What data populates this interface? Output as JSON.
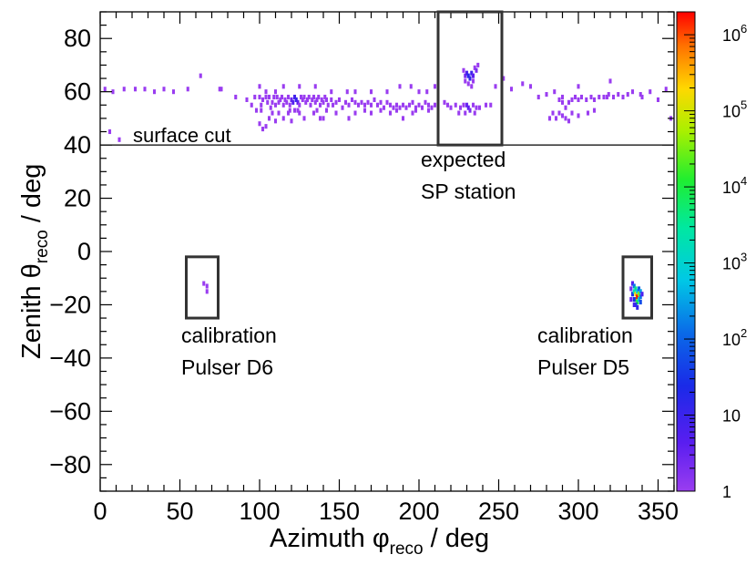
{
  "chart_data": {
    "type": "heatmap",
    "xlabel_main": "Azimuth φ",
    "xlabel_sub": "reco",
    "xlabel_tail": " / deg",
    "ylabel_main": "Zenith θ",
    "ylabel_sub": "reco",
    "ylabel_tail": " / deg",
    "xlim": [
      0,
      360
    ],
    "ylim": [
      -90,
      90
    ],
    "x_ticks": [
      "0",
      "50",
      "100",
      "150",
      "200",
      "250",
      "300",
      "350"
    ],
    "x_tick_values": [
      0,
      50,
      100,
      150,
      200,
      250,
      300,
      350
    ],
    "y_ticks": [
      "−80",
      "−60",
      "−40",
      "−20",
      "0",
      "20",
      "40",
      "60",
      "80"
    ],
    "y_tick_values": [
      -80,
      -60,
      -40,
      -20,
      0,
      20,
      40,
      60,
      80
    ],
    "colorbar": {
      "scale": "log",
      "range": [
        1,
        2000000
      ],
      "tick_labels": [
        {
          "base": "1",
          "exp": "",
          "value": 1
        },
        {
          "base": "10",
          "exp": "",
          "value": 10
        },
        {
          "base": "10",
          "exp": "2",
          "value": 100
        },
        {
          "base": "10",
          "exp": "3",
          "value": 1000
        },
        {
          "base": "10",
          "exp": "4",
          "value": 10000
        },
        {
          "base": "10",
          "exp": "5",
          "value": 100000
        },
        {
          "base": "10",
          "exp": "6",
          "value": 1000000
        }
      ]
    },
    "surface_cut": {
      "value": 40,
      "label": "surface cut"
    },
    "boxes": [
      {
        "name": "sp-station",
        "x0": 212,
        "x1": 252,
        "y0": 40,
        "y1": 90,
        "label_lines": [
          "expected",
          "SP station"
        ]
      },
      {
        "name": "pulser-d6",
        "x0": 54,
        "x1": 74,
        "y0": -25,
        "y1": -2,
        "label_lines": [
          "calibration",
          "Pulser D6"
        ]
      },
      {
        "name": "pulser-d5",
        "x0": 328,
        "x1": 346,
        "y0": -25,
        "y1": -2,
        "label_lines": [
          "calibration",
          "Pulser D5"
        ]
      }
    ],
    "cells": [
      [
        3,
        61,
        1
      ],
      [
        6,
        45,
        1
      ],
      [
        8,
        60,
        1
      ],
      [
        12,
        42,
        1
      ],
      [
        15,
        61,
        1
      ],
      [
        22,
        61,
        1
      ],
      [
        28,
        61,
        1
      ],
      [
        34,
        60,
        1
      ],
      [
        40,
        61,
        1
      ],
      [
        46,
        60,
        1
      ],
      [
        55,
        61,
        1
      ],
      [
        63,
        66,
        1
      ],
      [
        75,
        61,
        1
      ],
      [
        76,
        61,
        1
      ],
      [
        85,
        58,
        1
      ],
      [
        92,
        57,
        1
      ],
      [
        97,
        58,
        1
      ],
      [
        100,
        58,
        1
      ],
      [
        101,
        55,
        1
      ],
      [
        102,
        57,
        1
      ],
      [
        104,
        58,
        1
      ],
      [
        105,
        56,
        1
      ],
      [
        106,
        58,
        1
      ],
      [
        107,
        54,
        1
      ],
      [
        108,
        56,
        1
      ],
      [
        109,
        58,
        1
      ],
      [
        110,
        55,
        1
      ],
      [
        111,
        58,
        1
      ],
      [
        112,
        56,
        1
      ],
      [
        113,
        57,
        1
      ],
      [
        114,
        58,
        1
      ],
      [
        115,
        55,
        1
      ],
      [
        116,
        57,
        1
      ],
      [
        117,
        56,
        1
      ],
      [
        118,
        58,
        1
      ],
      [
        119,
        55,
        1
      ],
      [
        120,
        57,
        3
      ],
      [
        121,
        56,
        5
      ],
      [
        122,
        58,
        8
      ],
      [
        123,
        57,
        12
      ],
      [
        124,
        56,
        4
      ],
      [
        125,
        55,
        1
      ],
      [
        126,
        58,
        1
      ],
      [
        127,
        57,
        1
      ],
      [
        128,
        58,
        1
      ],
      [
        129,
        56,
        1
      ],
      [
        130,
        57,
        1
      ],
      [
        131,
        58,
        1
      ],
      [
        132,
        55,
        1
      ],
      [
        133,
        57,
        1
      ],
      [
        134,
        58,
        1
      ],
      [
        135,
        56,
        1
      ],
      [
        136,
        57,
        1
      ],
      [
        137,
        58,
        1
      ],
      [
        138,
        55,
        1
      ],
      [
        139,
        57,
        1
      ],
      [
        140,
        56,
        1
      ],
      [
        141,
        58,
        1
      ],
      [
        142,
        57,
        1
      ],
      [
        143,
        55,
        1
      ],
      [
        145,
        57,
        1
      ],
      [
        146,
        55,
        1
      ],
      [
        148,
        56,
        1
      ],
      [
        150,
        57,
        1
      ],
      [
        152,
        54,
        1
      ],
      [
        154,
        56,
        1
      ],
      [
        156,
        55,
        1
      ],
      [
        158,
        57,
        1
      ],
      [
        160,
        56,
        1
      ],
      [
        162,
        55,
        1
      ],
      [
        164,
        56,
        1
      ],
      [
        166,
        55,
        1
      ],
      [
        168,
        56,
        1
      ],
      [
        170,
        55,
        1
      ],
      [
        172,
        57,
        1
      ],
      [
        174,
        55,
        1
      ],
      [
        176,
        56,
        1
      ],
      [
        178,
        54,
        1
      ],
      [
        180,
        56,
        1
      ],
      [
        182,
        55,
        1
      ],
      [
        184,
        54,
        1
      ],
      [
        186,
        55,
        1
      ],
      [
        188,
        54,
        1
      ],
      [
        190,
        55,
        1
      ],
      [
        192,
        54,
        1
      ],
      [
        194,
        55,
        1
      ],
      [
        196,
        56,
        1
      ],
      [
        198,
        54,
        1
      ],
      [
        200,
        55,
        1
      ],
      [
        202,
        54,
        1
      ],
      [
        204,
        56,
        1
      ],
      [
        206,
        55,
        1
      ],
      [
        208,
        54,
        1
      ],
      [
        210,
        55,
        1
      ],
      [
        100,
        48,
        1
      ],
      [
        102,
        46,
        1
      ],
      [
        104,
        47,
        1
      ],
      [
        106,
        50,
        1
      ],
      [
        108,
        52,
        1
      ],
      [
        110,
        49,
        1
      ],
      [
        112,
        52,
        1
      ],
      [
        115,
        50,
        1
      ],
      [
        118,
        52,
        1
      ],
      [
        120,
        49,
        1
      ],
      [
        125,
        52,
        1
      ],
      [
        128,
        50,
        1
      ],
      [
        134,
        52,
        1
      ],
      [
        138,
        50,
        1
      ],
      [
        140,
        50,
        1
      ],
      [
        148,
        52,
        1
      ],
      [
        156,
        50,
        1
      ],
      [
        160,
        52,
        1
      ],
      [
        170,
        52,
        1
      ],
      [
        182,
        52,
        1
      ],
      [
        190,
        50,
        1
      ],
      [
        196,
        52,
        1
      ],
      [
        100,
        62,
        1
      ],
      [
        104,
        60,
        1
      ],
      [
        110,
        60,
        1
      ],
      [
        115,
        62,
        1
      ],
      [
        125,
        62,
        1
      ],
      [
        135,
        62,
        1
      ],
      [
        145,
        60,
        1
      ],
      [
        155,
        60,
        1
      ],
      [
        160,
        60,
        1
      ],
      [
        170,
        60,
        1
      ],
      [
        180,
        60,
        1
      ],
      [
        188,
        62,
        1
      ],
      [
        195,
        62,
        1
      ],
      [
        200,
        60,
        1
      ],
      [
        205,
        60,
        1
      ],
      [
        210,
        62,
        1
      ],
      [
        95,
        55,
        1
      ],
      [
        98,
        53,
        1
      ],
      [
        101,
        53,
        1
      ],
      [
        119,
        53,
        1
      ],
      [
        122,
        53,
        1
      ],
      [
        124,
        53,
        1
      ],
      [
        136,
        53,
        1
      ],
      [
        142,
        53,
        1
      ],
      [
        166,
        53,
        1
      ],
      [
        176,
        53,
        1
      ],
      [
        186,
        53,
        1
      ],
      [
        198,
        53,
        1
      ],
      [
        206,
        53,
        1
      ],
      [
        228,
        68,
        1
      ],
      [
        229,
        66,
        2
      ],
      [
        230,
        67,
        6
      ],
      [
        231,
        66,
        18
      ],
      [
        232,
        65,
        12
      ],
      [
        233,
        67,
        9
      ],
      [
        234,
        66,
        4
      ],
      [
        235,
        69,
        1
      ],
      [
        236,
        68,
        2
      ],
      [
        237,
        70,
        1
      ],
      [
        231,
        63,
        1
      ],
      [
        233,
        62,
        1
      ],
      [
        234,
        64,
        1
      ],
      [
        229,
        64,
        1
      ],
      [
        216,
        56,
        1
      ],
      [
        218,
        55,
        1
      ],
      [
        220,
        54,
        1
      ],
      [
        223,
        55,
        1
      ],
      [
        226,
        54,
        1
      ],
      [
        228,
        55,
        1
      ],
      [
        230,
        55,
        3
      ],
      [
        231,
        54,
        4
      ],
      [
        232,
        53,
        2
      ],
      [
        234,
        55,
        1
      ],
      [
        236,
        54,
        1
      ],
      [
        238,
        54,
        1
      ],
      [
        242,
        55,
        1
      ],
      [
        245,
        55,
        1
      ],
      [
        229,
        52,
        1
      ],
      [
        235,
        52,
        1
      ],
      [
        225,
        52,
        1
      ],
      [
        248,
        62,
        1
      ],
      [
        253,
        65,
        1
      ],
      [
        258,
        61,
        1
      ],
      [
        265,
        63,
        1
      ],
      [
        270,
        62,
        1
      ],
      [
        275,
        58,
        1
      ],
      [
        280,
        59,
        1
      ],
      [
        285,
        60,
        1
      ],
      [
        288,
        57,
        1
      ],
      [
        290,
        56,
        1
      ],
      [
        292,
        54,
        1
      ],
      [
        294,
        56,
        1
      ],
      [
        296,
        57,
        1
      ],
      [
        298,
        58,
        1
      ],
      [
        300,
        57,
        1
      ],
      [
        302,
        58,
        1
      ],
      [
        305,
        57,
        1
      ],
      [
        308,
        58,
        1
      ],
      [
        310,
        57,
        1
      ],
      [
        313,
        58,
        1
      ],
      [
        316,
        58,
        1
      ],
      [
        319,
        59,
        1
      ],
      [
        322,
        58,
        1
      ],
      [
        325,
        59,
        1
      ],
      [
        328,
        58,
        1
      ],
      [
        331,
        59,
        1
      ],
      [
        334,
        60,
        1
      ],
      [
        339,
        59,
        1
      ],
      [
        345,
        60,
        1
      ],
      [
        355,
        61,
        1
      ],
      [
        358,
        50,
        1
      ],
      [
        282,
        50,
        1
      ],
      [
        284,
        52,
        1
      ],
      [
        286,
        50,
        1
      ],
      [
        288,
        52,
        1
      ],
      [
        290,
        51,
        1
      ],
      [
        292,
        50,
        1
      ],
      [
        294,
        49,
        1
      ],
      [
        296,
        52,
        1
      ],
      [
        300,
        51,
        1
      ],
      [
        306,
        52,
        1
      ],
      [
        310,
        53,
        1
      ],
      [
        318,
        58,
        1
      ],
      [
        340,
        58,
        1
      ],
      [
        350,
        57,
        1
      ],
      [
        290,
        58,
        1
      ],
      [
        300,
        62,
        1
      ],
      [
        320,
        64,
        1
      ],
      [
        65,
        -12,
        1
      ],
      [
        67,
        -13,
        1
      ],
      [
        67,
        -15,
        1
      ],
      [
        333,
        -14,
        2
      ],
      [
        334,
        -12,
        5
      ],
      [
        334,
        -16,
        30
      ],
      [
        335,
        -13,
        150
      ],
      [
        335,
        -15,
        1500
      ],
      [
        336,
        -14,
        4000
      ],
      [
        336,
        -16,
        200000
      ],
      [
        336,
        -18,
        30000
      ],
      [
        337,
        -15,
        600
      ],
      [
        337,
        -17,
        2000000
      ],
      [
        337,
        -19,
        9000
      ],
      [
        338,
        -14,
        80
      ],
      [
        338,
        -16,
        40000
      ],
      [
        338,
        -18,
        800
      ],
      [
        339,
        -15,
        300
      ],
      [
        339,
        -17,
        150
      ],
      [
        339,
        -19,
        60
      ],
      [
        336,
        -20,
        40
      ],
      [
        337,
        -21,
        12
      ],
      [
        335,
        -18,
        25
      ],
      [
        335,
        -20,
        8
      ],
      [
        333,
        -18,
        3
      ],
      [
        340,
        -16,
        6
      ]
    ]
  }
}
